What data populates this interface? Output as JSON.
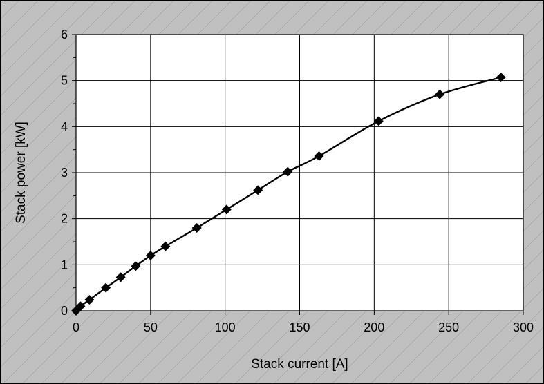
{
  "chart_data": {
    "type": "line",
    "title": "",
    "xlabel": "Stack current [A]",
    "ylabel": "Stack power [kW]",
    "xlim": [
      0,
      300
    ],
    "ylim": [
      0,
      6
    ],
    "xticks": [
      0,
      50,
      100,
      150,
      200,
      250,
      300
    ],
    "yticks": [
      0,
      1,
      2,
      3,
      4,
      5,
      6
    ],
    "grid": true,
    "legend": "none",
    "colors": {
      "line": "#000000",
      "marker": "#000000",
      "outer_background": "#c0c0c0",
      "plot_background": "#ffffff",
      "grid": "#000000"
    },
    "marker": "diamond",
    "series": [
      {
        "x": [
          0,
          3,
          9,
          20,
          30,
          40,
          50,
          60,
          81,
          101,
          122,
          142,
          163,
          203,
          244,
          285
        ],
        "y": [
          0.0,
          0.1,
          0.24,
          0.5,
          0.73,
          0.97,
          1.2,
          1.4,
          1.8,
          2.2,
          2.62,
          3.02,
          3.36,
          4.12,
          4.7,
          5.07
        ]
      }
    ]
  }
}
